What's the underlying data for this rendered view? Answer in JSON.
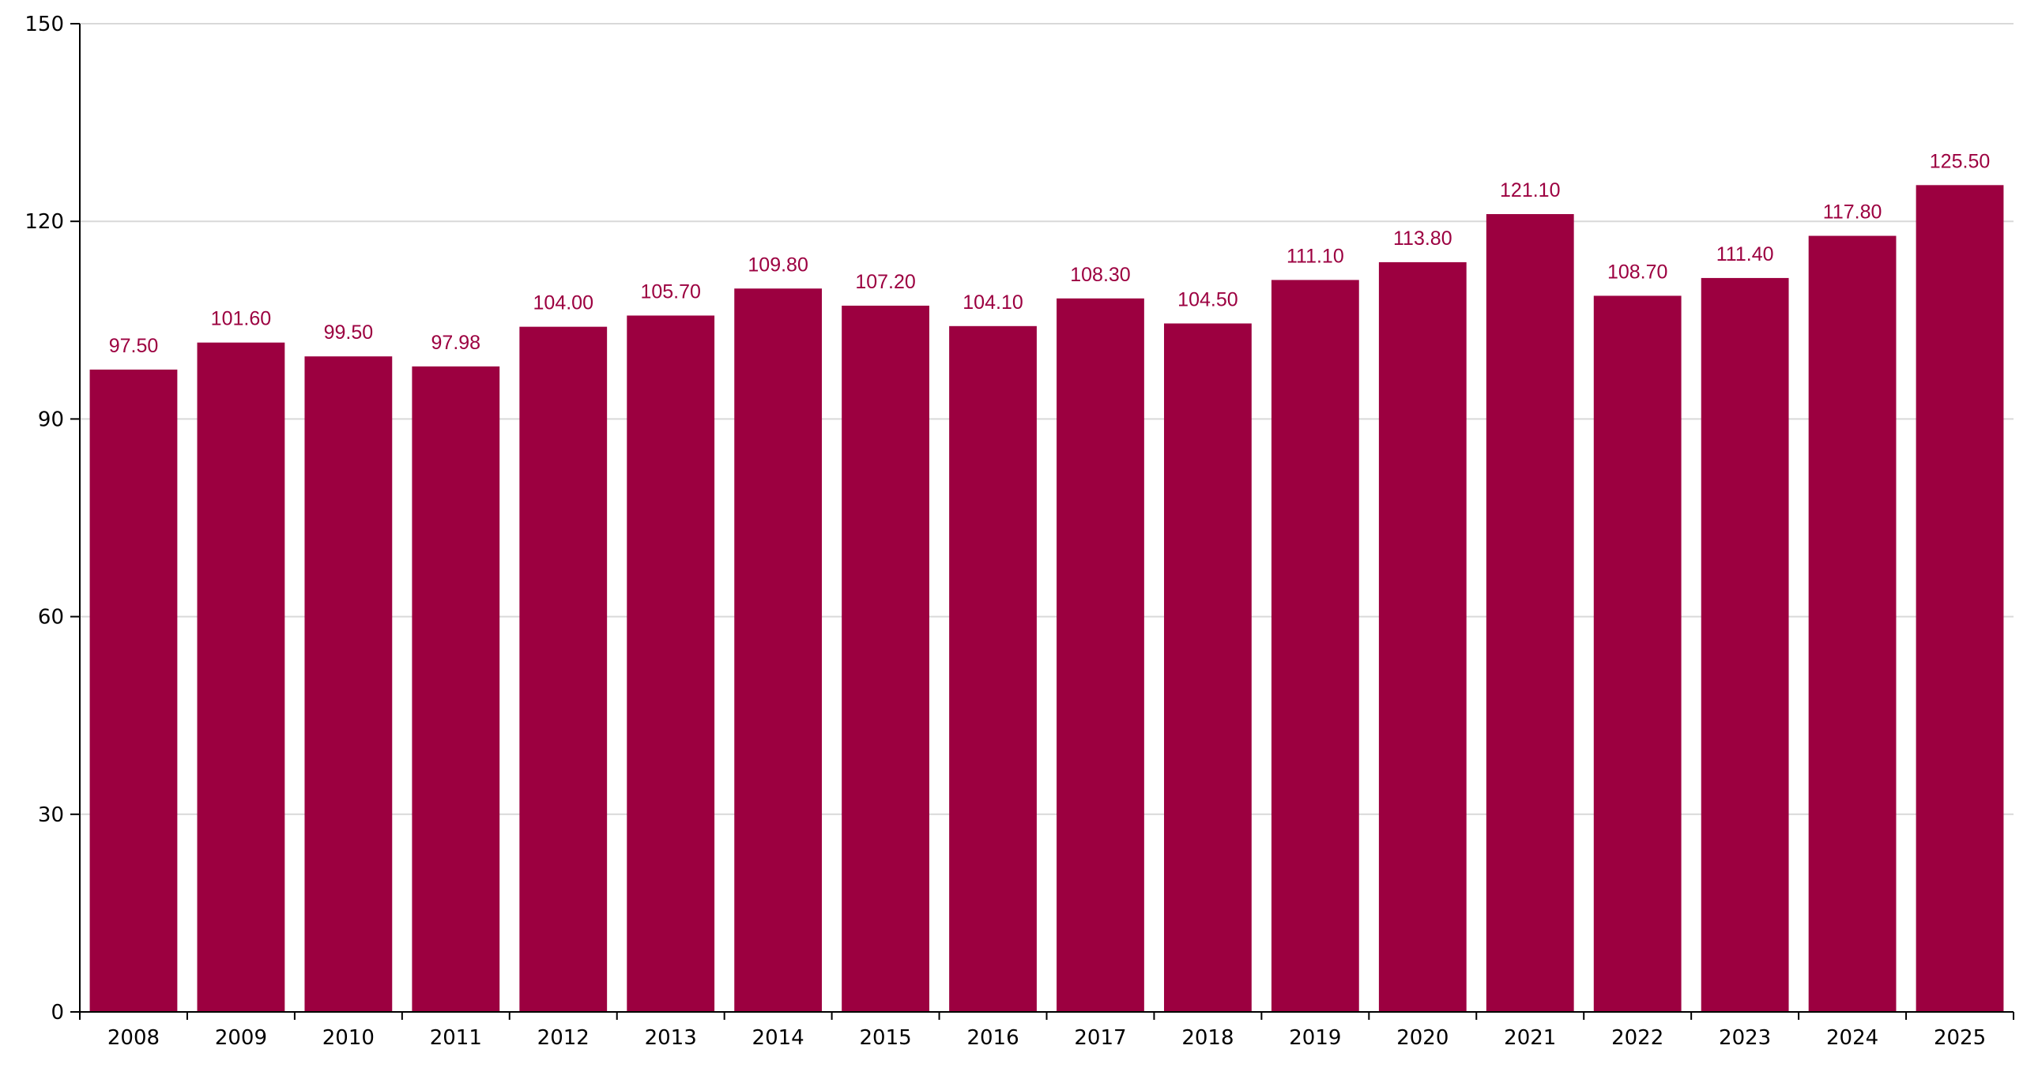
{
  "chart_data": {
    "type": "bar",
    "title": "",
    "xlabel": "",
    "ylabel": "",
    "categories": [
      "2008",
      "2009",
      "2010",
      "2011",
      "2012",
      "2013",
      "2014",
      "2015",
      "2016",
      "2017",
      "2018",
      "2019",
      "2020",
      "2021",
      "2022",
      "2023",
      "2024",
      "2025"
    ],
    "values": [
      97.5,
      101.6,
      99.5,
      97.98,
      104.0,
      105.7,
      109.8,
      107.2,
      104.1,
      108.3,
      104.5,
      111.1,
      113.8,
      121.1,
      108.7,
      111.4,
      117.8,
      125.5
    ],
    "value_labels": [
      "97.50",
      "101.60",
      "99.50",
      "97.98",
      "104.00",
      "105.70",
      "109.80",
      "107.20",
      "104.10",
      "108.30",
      "104.50",
      "111.10",
      "113.80",
      "121.10",
      "108.70",
      "111.40",
      "117.80",
      "125.50"
    ],
    "ylim": [
      0,
      150
    ],
    "yticks": [
      0,
      30,
      60,
      90,
      120,
      150
    ],
    "grid": true,
    "bar_color": "#9c0040",
    "label_color": "#9c0040",
    "gridline_color": "#d9d9d9",
    "axis_color": "#000000"
  }
}
